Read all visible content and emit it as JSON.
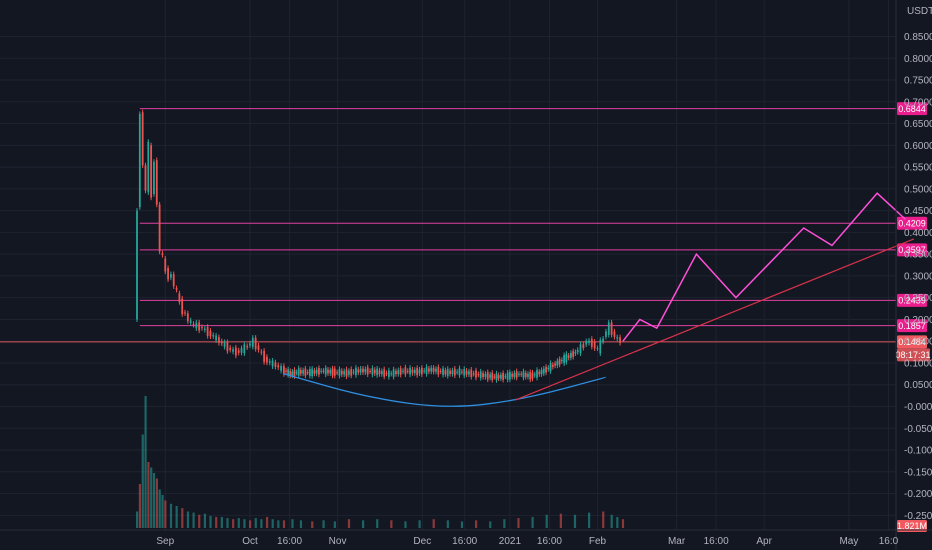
{
  "currency_label": "USDT",
  "colors": {
    "background": "#131722",
    "grid": "#1f2330",
    "axis_text": "#b2b5be",
    "up": "#26a69a",
    "down": "#ef5350",
    "level_line": "#e040a0",
    "level_tag": "#e91e8c",
    "current_tag": "#f0595f",
    "projection": "#ff4fd8",
    "trendline": "#d8324a",
    "cup_arc": "#2f8fe0"
  },
  "chart_data": {
    "type": "candlestick",
    "y_ticks": [
      0.85,
      0.8,
      0.75,
      0.7,
      0.65,
      0.6,
      0.55,
      0.5,
      0.45,
      0.4,
      0.35,
      0.3,
      0.25,
      0.2,
      0.15,
      0.1,
      0.05,
      0,
      -0.05,
      -0.1,
      -0.15,
      -0.2,
      -0.25
    ],
    "y_tick_labels": [
      "0.8500",
      "0.8000",
      "0.7500",
      "0.7000",
      "0.6500",
      "0.6000",
      "0.5500",
      "0.5000",
      "0.4500",
      "0.4000",
      "0.3500",
      "0.3000",
      "0.2500",
      "0.2000",
      "0.1500",
      "0.1000",
      "0.0500",
      "-0.0000",
      "-0.0500",
      "-0.1000",
      "-0.1500",
      "-0.2000",
      "-0.2500"
    ],
    "x_ticks": [
      {
        "label": "Sep",
        "day": 10
      },
      {
        "label": "Oct",
        "day": 40
      },
      {
        "label": "16:00",
        "day": 54
      },
      {
        "label": "Nov",
        "day": 71
      },
      {
        "label": "Dec",
        "day": 101
      },
      {
        "label": "16:00",
        "day": 116
      },
      {
        "label": "2021",
        "day": 132
      },
      {
        "label": "16:00",
        "day": 146
      },
      {
        "label": "Feb",
        "day": 163
      },
      {
        "label": "Mar",
        "day": 191
      },
      {
        "label": "16:00",
        "day": 205
      },
      {
        "label": "Apr",
        "day": 222
      },
      {
        "label": "May",
        "day": 252
      },
      {
        "label": "16:0",
        "day": 266
      }
    ],
    "levels": [
      {
        "label": "0.6844",
        "value": 0.6844
      },
      {
        "label": "0.4209",
        "value": 0.4209
      },
      {
        "label": "0.3597",
        "value": 0.3597
      },
      {
        "label": "0.2439",
        "value": 0.2439
      },
      {
        "label": "0.1857",
        "value": 0.1857
      }
    ],
    "current_price": {
      "label": "0.1484",
      "value": 0.1484,
      "countdown": "08:17:31"
    },
    "volume_label": "1.821M",
    "price_path": [
      [
        0,
        0.2
      ],
      [
        1,
        0.45
      ],
      [
        2,
        0.68
      ],
      [
        3,
        0.55
      ],
      [
        4,
        0.5
      ],
      [
        5,
        0.6
      ],
      [
        6,
        0.48
      ],
      [
        7,
        0.57
      ],
      [
        8,
        0.46
      ],
      [
        9,
        0.36
      ],
      [
        10,
        0.34
      ],
      [
        11,
        0.31
      ],
      [
        12,
        0.3
      ],
      [
        13,
        0.3
      ],
      [
        14,
        0.28
      ],
      [
        15,
        0.26
      ],
      [
        16,
        0.24
      ],
      [
        17,
        0.22
      ],
      [
        18,
        0.21
      ],
      [
        19,
        0.2
      ],
      [
        20,
        0.19
      ],
      [
        22,
        0.185
      ],
      [
        24,
        0.18
      ],
      [
        26,
        0.17
      ],
      [
        28,
        0.16
      ],
      [
        30,
        0.15
      ],
      [
        32,
        0.14
      ],
      [
        34,
        0.13
      ],
      [
        36,
        0.125
      ],
      [
        38,
        0.13
      ],
      [
        40,
        0.14
      ],
      [
        42,
        0.15
      ],
      [
        44,
        0.13
      ],
      [
        46,
        0.11
      ],
      [
        48,
        0.1
      ],
      [
        50,
        0.095
      ],
      [
        52,
        0.085
      ],
      [
        55,
        0.075
      ],
      [
        58,
        0.08
      ],
      [
        62,
        0.078
      ],
      [
        66,
        0.082
      ],
      [
        70,
        0.079
      ],
      [
        75,
        0.077
      ],
      [
        80,
        0.083
      ],
      [
        85,
        0.08
      ],
      [
        90,
        0.075
      ],
      [
        95,
        0.082
      ],
      [
        100,
        0.08
      ],
      [
        105,
        0.085
      ],
      [
        110,
        0.078
      ],
      [
        115,
        0.08
      ],
      [
        120,
        0.075
      ],
      [
        125,
        0.07
      ],
      [
        128,
        0.068
      ],
      [
        132,
        0.07
      ],
      [
        136,
        0.075
      ],
      [
        140,
        0.07
      ],
      [
        144,
        0.08
      ],
      [
        148,
        0.095
      ],
      [
        152,
        0.11
      ],
      [
        156,
        0.125
      ],
      [
        158,
        0.135
      ],
      [
        160,
        0.15
      ],
      [
        162,
        0.145
      ],
      [
        164,
        0.13
      ],
      [
        166,
        0.16
      ],
      [
        168,
        0.185
      ],
      [
        170,
        0.16
      ],
      [
        171,
        0.155
      ],
      [
        172,
        0.15
      ]
    ],
    "projection_path": [
      [
        172,
        0.15
      ],
      [
        178,
        0.2
      ],
      [
        184,
        0.18
      ],
      [
        198,
        0.35
      ],
      [
        212,
        0.25
      ],
      [
        236,
        0.41
      ],
      [
        246,
        0.37
      ],
      [
        262,
        0.49
      ],
      [
        272,
        0.43
      ]
    ],
    "trendline": [
      [
        134,
        0.015
      ],
      [
        275,
        0.385
      ]
    ],
    "cup_arc": [
      [
        52,
        0.075
      ],
      [
        82,
        0.02
      ],
      [
        110,
        -0.005
      ],
      [
        136,
        0.015
      ],
      [
        166,
        0.067
      ]
    ],
    "volume_bars": [
      [
        0,
        0.15
      ],
      [
        1,
        0.4
      ],
      [
        2,
        0.85
      ],
      [
        3,
        1.2
      ],
      [
        4,
        0.6
      ],
      [
        5,
        0.55
      ],
      [
        6,
        0.5
      ],
      [
        7,
        0.45
      ],
      [
        8,
        0.35
      ],
      [
        9,
        0.3
      ],
      [
        10,
        0.25
      ],
      [
        12,
        0.22
      ],
      [
        14,
        0.2
      ],
      [
        16,
        0.18
      ],
      [
        18,
        0.15
      ],
      [
        20,
        0.14
      ],
      [
        22,
        0.12
      ],
      [
        24,
        0.13
      ],
      [
        26,
        0.11
      ],
      [
        28,
        0.1
      ],
      [
        30,
        0.1
      ],
      [
        32,
        0.09
      ],
      [
        34,
        0.08
      ],
      [
        36,
        0.09
      ],
      [
        38,
        0.08
      ],
      [
        40,
        0.07
      ],
      [
        42,
        0.09
      ],
      [
        44,
        0.08
      ],
      [
        46,
        0.1
      ],
      [
        48,
        0.08
      ],
      [
        50,
        0.07
      ],
      [
        52,
        0.07
      ],
      [
        55,
        0.08
      ],
      [
        58,
        0.07
      ],
      [
        62,
        0.06
      ],
      [
        66,
        0.07
      ],
      [
        70,
        0.06
      ],
      [
        75,
        0.08
      ],
      [
        80,
        0.07
      ],
      [
        85,
        0.08
      ],
      [
        90,
        0.07
      ],
      [
        95,
        0.06
      ],
      [
        100,
        0.07
      ],
      [
        105,
        0.08
      ],
      [
        110,
        0.07
      ],
      [
        115,
        0.06
      ],
      [
        120,
        0.07
      ],
      [
        125,
        0.06
      ],
      [
        130,
        0.08
      ],
      [
        135,
        0.09
      ],
      [
        140,
        0.1
      ],
      [
        145,
        0.12
      ],
      [
        150,
        0.13
      ],
      [
        155,
        0.12
      ],
      [
        160,
        0.14
      ],
      [
        165,
        0.15
      ],
      [
        168,
        0.12
      ],
      [
        170,
        0.1
      ],
      [
        172,
        0.08
      ]
    ]
  }
}
